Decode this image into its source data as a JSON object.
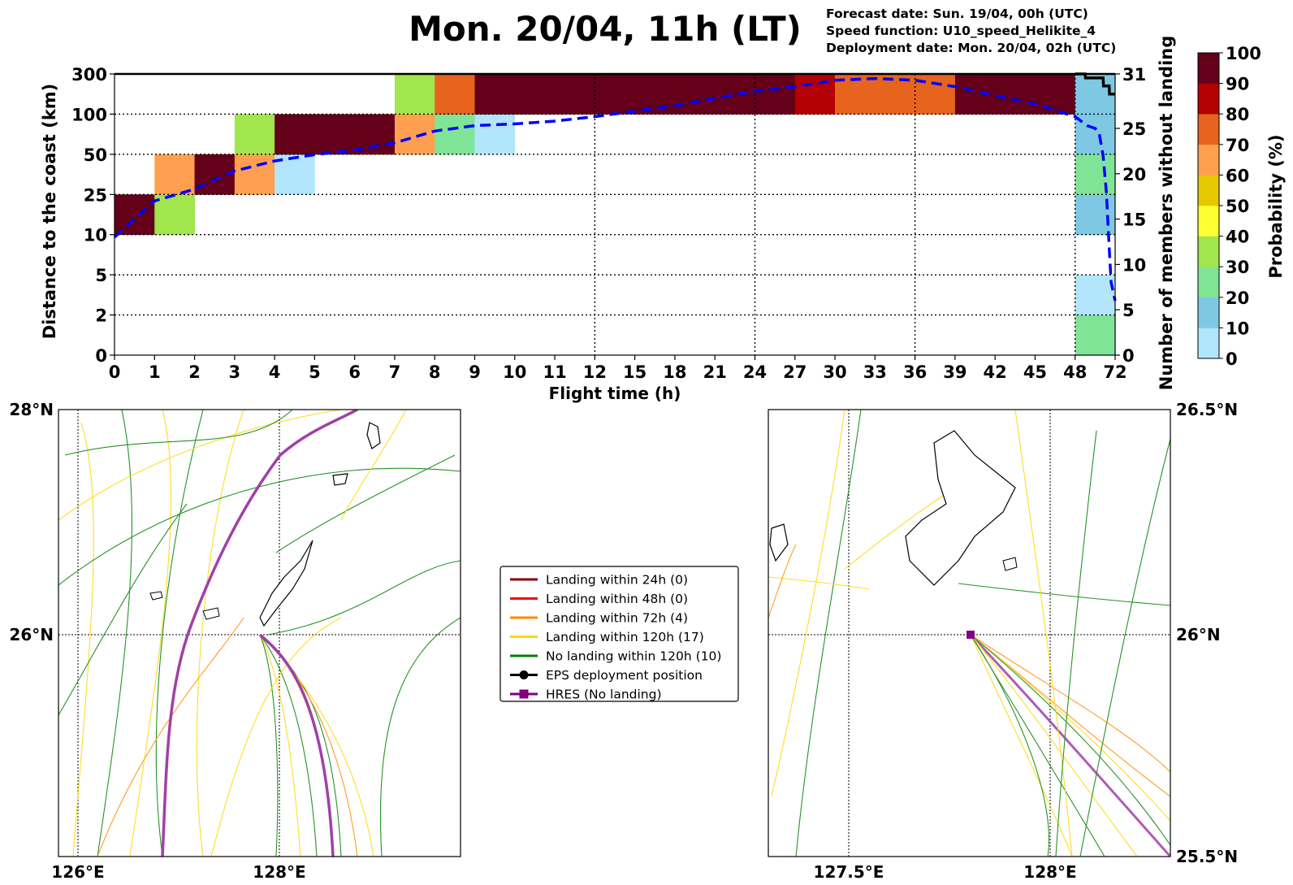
{
  "header": {
    "title": "Mon. 20/04, 11h (LT)",
    "forecast_date": "Forecast date: Sun. 19/04, 00h (UTC)",
    "speed_function": "Speed function: U10_speed_Helikite_4",
    "deployment_date": "Deployment date: Mon. 20/04, 02h (UTC)"
  },
  "chart_data": [
    {
      "type": "heatmap",
      "xlabel": "Flight time (h)",
      "ylabel": "Distance to the coast (km)",
      "y2label": "Number of members without landing",
      "x_ticks": [
        "0",
        "1",
        "2",
        "3",
        "4",
        "5",
        "6",
        "7",
        "8",
        "9",
        "10",
        "11",
        "12",
        "15",
        "18",
        "21",
        "24",
        "27",
        "30",
        "33",
        "36",
        "39",
        "42",
        "45",
        "48",
        "72"
      ],
      "y_ticks": [
        "0",
        "2",
        "5",
        "10",
        "25",
        "50",
        "100",
        "300"
      ],
      "y2_ticks": [
        "0",
        "5",
        "10",
        "15",
        "20",
        "25",
        "31"
      ],
      "y2_range": [
        0,
        31
      ],
      "grid": "dotted at x = 12, 24, 36, 48 and every y band",
      "colorbar": {
        "label": "Probability (%)",
        "ticks": [
          "0",
          "10",
          "20",
          "30",
          "40",
          "50",
          "60",
          "70",
          "80",
          "90",
          "100"
        ],
        "colors": [
          "#b3e5fa",
          "#7ec8e3",
          "#80e496",
          "#a0e64c",
          "#ffff33",
          "#e6c800",
          "#ffa050",
          "#e6641e",
          "#b40000",
          "#640019"
        ]
      },
      "cells": [
        {
          "x": 0,
          "y": 3,
          "p": 100
        },
        {
          "x": 1,
          "y": 3,
          "p": 35
        },
        {
          "x": 1,
          "y": 4,
          "p": 65
        },
        {
          "x": 2,
          "y": 4,
          "p": 95
        },
        {
          "x": 3,
          "y": 4,
          "p": 65
        },
        {
          "x": 3,
          "y": 5,
          "p": 35
        },
        {
          "x": 4,
          "y": 4,
          "p": 5
        },
        {
          "x": 4,
          "y": 5,
          "p": 95
        },
        {
          "x": 5,
          "y": 5,
          "p": 95
        },
        {
          "x": 6,
          "y": 5,
          "p": 95
        },
        {
          "x": 7,
          "y": 5,
          "p": 65
        },
        {
          "x": 7,
          "y": 6,
          "p": 35
        },
        {
          "x": 8,
          "y": 5,
          "p": 25
        },
        {
          "x": 8,
          "y": 6,
          "p": 75
        },
        {
          "x": 9,
          "y": 5,
          "p": 5
        },
        {
          "x": 9,
          "y": 6,
          "p": 95
        },
        {
          "x": 10,
          "y": 6,
          "p": 95
        },
        {
          "x": 11,
          "y": 6,
          "p": 95
        },
        {
          "x": 12,
          "y": 6,
          "p": 95
        },
        {
          "x": 13,
          "y": 6,
          "p": 95
        },
        {
          "x": 14,
          "y": 6,
          "p": 95
        },
        {
          "x": 15,
          "y": 6,
          "p": 95
        },
        {
          "x": 16,
          "y": 6,
          "p": 95
        },
        {
          "x": 17,
          "y": 6,
          "p": 85
        },
        {
          "x": 18,
          "y": 6,
          "p": 75
        },
        {
          "x": 19,
          "y": 6,
          "p": 75
        },
        {
          "x": 20,
          "y": 6,
          "p": 75
        },
        {
          "x": 21,
          "y": 6,
          "p": 95
        },
        {
          "x": 22,
          "y": 6,
          "p": 95
        },
        {
          "x": 23,
          "y": 6,
          "p": 95
        },
        {
          "x": 24,
          "y": 0,
          "p": 25
        },
        {
          "x": 24,
          "y": 1,
          "p": 5
        },
        {
          "x": 24,
          "y": 3,
          "p": 15
        },
        {
          "x": 24,
          "y": 4,
          "p": 25
        },
        {
          "x": 24,
          "y": 5,
          "p": 15
        },
        {
          "x": 24,
          "y": 6,
          "p": 15
        }
      ],
      "members_without_landing": {
        "x": [
          0,
          1,
          2,
          3,
          4,
          5,
          6,
          7,
          8,
          9,
          10,
          11,
          12,
          13,
          14,
          15,
          16,
          17,
          18,
          19,
          20,
          21,
          22,
          23,
          24,
          24.3,
          24.5,
          24.6,
          24.7,
          24.78,
          24.85,
          24.9,
          25
        ],
        "y": [
          13,
          17,
          18.3,
          20.3,
          21.4,
          22.1,
          22.6,
          23.4,
          24.7,
          25.3,
          25.5,
          25.8,
          26.3,
          26.9,
          27.5,
          28.3,
          29.1,
          29.6,
          30.3,
          30.5,
          30.3,
          29.6,
          28.6,
          27.7,
          26.3,
          25.3,
          25.0,
          24.5,
          22,
          18,
          12,
          8,
          6
        ]
      },
      "hres_distance": {
        "x": [
          24,
          24.25,
          24.26,
          24.7,
          24.71,
          24.85,
          24.86,
          25
        ],
        "y": [
          300,
          300,
          280,
          280,
          240,
          240,
          200,
          200
        ]
      }
    },
    {
      "type": "map",
      "x_ticks": [
        "126°E",
        "128°E"
      ],
      "y_ticks": [
        "28°N",
        "26°N"
      ],
      "lon_range": [
        125.8,
        129.8
      ],
      "lat_range": [
        24.0,
        28.0
      ]
    },
    {
      "type": "map",
      "x_ticks": [
        "127.5°E",
        "128°E"
      ],
      "y_ticks": [
        "26.5°N",
        "26°N",
        "25.5°N"
      ],
      "lon_range": [
        127.3,
        128.3
      ],
      "lat_range": [
        25.5,
        26.5
      ]
    }
  ],
  "legend": {
    "items": [
      {
        "label": "Landing within 24h (0)",
        "color": "#8b0000",
        "marker": "line"
      },
      {
        "label": "Landing within 48h (0)",
        "color": "#ff0000",
        "marker": "line"
      },
      {
        "label": "Landing within 72h (4)",
        "color": "#ff8c00",
        "marker": "line"
      },
      {
        "label": "Landing within 120h (17)",
        "color": "#ffd700",
        "marker": "line"
      },
      {
        "label": "No landing within 120h (10)",
        "color": "#008000",
        "marker": "line"
      },
      {
        "label": "EPS deployment position",
        "color": "#000000",
        "marker": "circle"
      },
      {
        "label": "HRES (No landing)",
        "color": "#800080",
        "marker": "square"
      }
    ]
  },
  "colors": {
    "eps_line": "#0000ff",
    "hres_line": "#000000",
    "hres_track": "#a040a8",
    "deploy_marker": "#800080"
  }
}
